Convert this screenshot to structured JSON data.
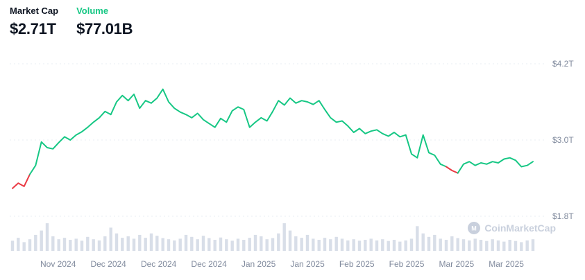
{
  "header": {
    "market_cap": {
      "label": "Market Cap",
      "value": "$2.71T"
    },
    "volume": {
      "label": "Volume",
      "value": "$77.01B"
    }
  },
  "watermark": {
    "text": "CoinMarketCap"
  },
  "colors": {
    "line_up": "#16c784",
    "line_down": "#ea3943",
    "volume_bar": "#d8dee8",
    "axis_text": "#808a9d",
    "gridline": "#e9edf3",
    "text_dark": "#0d1421",
    "watermark": "#c9d0dd"
  },
  "chart_data": {
    "type": "line",
    "title": "Total crypto market cap over time with volume bars",
    "unit": "trillion USD",
    "legend_position": "none",
    "grid": "dashed-horizontal",
    "x_labels": [
      "Nov 2024",
      "Dec 2024",
      "Dec 2024",
      "Dec 2024",
      "Jan 2025",
      "Jan 2025",
      "Feb 2025",
      "Feb 2025",
      "Mar 2025",
      "Mar 2025"
    ],
    "y_ticks": [
      {
        "label": "$4.2T",
        "value": 4.2
      },
      {
        "label": "$3.0T",
        "value": 3.0
      },
      {
        "label": "$1.8T",
        "value": 1.8
      }
    ],
    "ylim": [
      1.6,
      4.45
    ],
    "series": [
      {
        "name": "Market Cap",
        "values": [
          2.24,
          2.32,
          2.27,
          2.46,
          2.6,
          2.97,
          2.88,
          2.86,
          2.96,
          3.05,
          3.0,
          3.08,
          3.13,
          3.2,
          3.28,
          3.35,
          3.45,
          3.4,
          3.6,
          3.7,
          3.62,
          3.72,
          3.5,
          3.62,
          3.58,
          3.66,
          3.8,
          3.6,
          3.5,
          3.44,
          3.4,
          3.35,
          3.42,
          3.32,
          3.26,
          3.2,
          3.34,
          3.28,
          3.46,
          3.52,
          3.48,
          3.2,
          3.28,
          3.35,
          3.3,
          3.45,
          3.62,
          3.55,
          3.66,
          3.58,
          3.62,
          3.6,
          3.56,
          3.62,
          3.48,
          3.35,
          3.28,
          3.3,
          3.22,
          3.12,
          3.18,
          3.1,
          3.14,
          3.16,
          3.1,
          3.06,
          3.12,
          3.05,
          3.08,
          2.78,
          2.72,
          3.08,
          2.8,
          2.76,
          2.62,
          2.58,
          2.52,
          2.48,
          2.62,
          2.66,
          2.6,
          2.64,
          2.62,
          2.66,
          2.64,
          2.7,
          2.72,
          2.68,
          2.58,
          2.6,
          2.66
        ],
        "red_segments": [
          [
            0,
            3
          ],
          [
            75,
            77
          ]
        ]
      }
    ],
    "volume_bars": {
      "name": "Volume",
      "heights_norm": [
        0.35,
        0.45,
        0.3,
        0.4,
        0.55,
        0.7,
        0.95,
        0.5,
        0.4,
        0.45,
        0.38,
        0.42,
        0.35,
        0.48,
        0.4,
        0.36,
        0.5,
        0.8,
        0.6,
        0.45,
        0.5,
        0.42,
        0.55,
        0.45,
        0.6,
        0.52,
        0.44,
        0.4,
        0.36,
        0.42,
        0.55,
        0.48,
        0.4,
        0.52,
        0.44,
        0.38,
        0.46,
        0.4,
        0.35,
        0.42,
        0.38,
        0.45,
        0.55,
        0.5,
        0.4,
        0.44,
        0.6,
        0.95,
        0.7,
        0.5,
        0.45,
        0.55,
        0.42,
        0.38,
        0.45,
        0.4,
        0.48,
        0.42,
        0.36,
        0.4,
        0.35,
        0.38,
        0.42,
        0.36,
        0.4,
        0.34,
        0.38,
        0.32,
        0.36,
        0.42,
        0.85,
        0.6,
        0.48,
        0.55,
        0.42,
        0.38,
        0.5,
        0.44,
        0.4,
        0.36,
        0.42,
        0.38,
        0.34,
        0.4,
        0.36,
        0.32,
        0.38,
        0.34,
        0.3,
        0.36,
        0.4
      ]
    }
  }
}
